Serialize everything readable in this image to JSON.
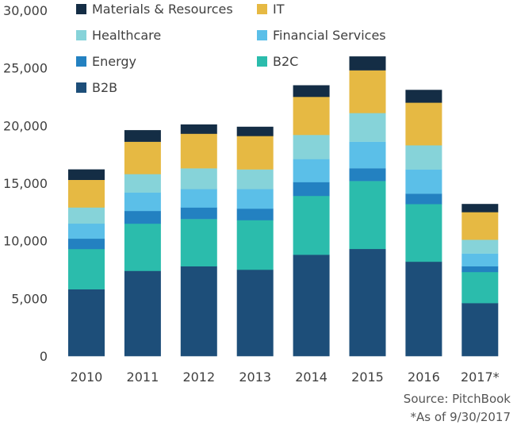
{
  "chart_data": {
    "type": "bar",
    "stacked": true,
    "title": "",
    "xlabel": "",
    "ylabel": "",
    "ylim": [
      0,
      30000
    ],
    "yticks": [
      0,
      5000,
      10000,
      15000,
      20000,
      25000,
      30000
    ],
    "ytick_labels": [
      "0",
      "5,000",
      "10,000",
      "15,000",
      "20,000",
      "25,000",
      "30,000"
    ],
    "grid": false,
    "legend_position": "top",
    "categories": [
      "2010",
      "2011",
      "2012",
      "2013",
      "2014",
      "2015",
      "2016",
      "2017*"
    ],
    "series": [
      {
        "name": "B2B",
        "color": "#1d4e79",
        "values": [
          5800,
          7400,
          7800,
          7500,
          8800,
          9300,
          8200,
          4600
        ]
      },
      {
        "name": "B2C",
        "color": "#2bbcac",
        "values": [
          3500,
          4100,
          4100,
          4300,
          5100,
          5900,
          5000,
          2700
        ]
      },
      {
        "name": "Energy",
        "color": "#2381c1",
        "values": [
          900,
          1100,
          1000,
          1000,
          1200,
          1100,
          900,
          500
        ]
      },
      {
        "name": "Financial Services",
        "color": "#5bbfe8",
        "values": [
          1300,
          1600,
          1600,
          1700,
          2000,
          2300,
          2100,
          1100
        ]
      },
      {
        "name": "Healthcare",
        "color": "#86d3d9",
        "values": [
          1400,
          1600,
          1800,
          1700,
          2100,
          2500,
          2100,
          1200
        ]
      },
      {
        "name": "IT",
        "color": "#e6b943",
        "values": [
          2400,
          2800,
          3000,
          2900,
          3300,
          3700,
          3700,
          2400
        ]
      },
      {
        "name": "Materials & Resources",
        "color": "#142d45",
        "values": [
          900,
          1000,
          800,
          800,
          1000,
          1200,
          1100,
          700
        ]
      }
    ]
  },
  "footer": {
    "source": "Source: PitchBook",
    "as_of": "*As of 9/30/2017"
  }
}
